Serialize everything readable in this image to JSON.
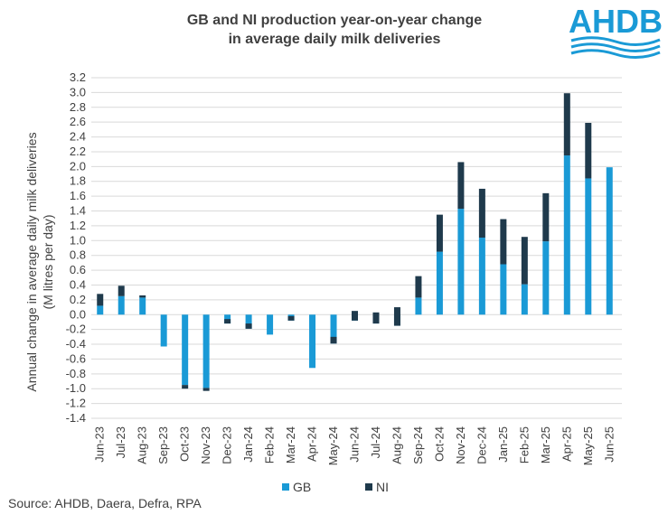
{
  "title_line1": "GB and NI production year-on-year change",
  "title_line2": "in average daily milk deliveries",
  "logo_text": "AHDB",
  "source": "Source: AHDB, Daera, Defra, RPA",
  "colors": {
    "gb": "#1a9ad6",
    "ni": "#1f3a4c",
    "grid": "#d9d9d9",
    "text": "#404040",
    "logo": "#1a9ad6"
  },
  "chart_data": {
    "type": "bar",
    "stacked": true,
    "title": "GB and NI production year-on-year change in average daily milk deliveries",
    "ylabel_line1": "Annual change in average daily milk deliveries",
    "ylabel_line2": "(M litres per day)",
    "xlabel": "",
    "ylim": [
      -1.4,
      3.2
    ],
    "ytick_step": 0.2,
    "yticks": [
      "3.2",
      "3.0",
      "2.8",
      "2.6",
      "2.4",
      "2.2",
      "2.0",
      "1.8",
      "1.6",
      "1.4",
      "1.2",
      "1.0",
      "0.8",
      "0.6",
      "0.4",
      "0.2",
      "0.0",
      "-0.2",
      "-0.4",
      "-0.6",
      "-0.8",
      "-1.0",
      "-1.2",
      "-1.4"
    ],
    "grid": true,
    "legend_position": "bottom",
    "categories": [
      "Jun-23",
      "Jul-23",
      "Aug-23",
      "Sep-23",
      "Oct-23",
      "Nov-23",
      "Dec-23",
      "Jan-24",
      "Feb-24",
      "Mar-24",
      "Apr-24",
      "May-24",
      "Jun-24",
      "Jul-24",
      "Aug-24",
      "Sep-24",
      "Oct-24",
      "Nov-24",
      "Dec-24",
      "Jan-25",
      "Feb-25",
      "Mar-25",
      "Apr-25",
      "May-25",
      "Jun-25"
    ],
    "series": [
      {
        "name": "GB",
        "values": [
          0.12,
          0.25,
          0.23,
          -0.43,
          -0.95,
          -0.99,
          -0.12,
          -0.19,
          -0.27,
          -0.08,
          -0.72,
          -0.39,
          -0.08,
          -0.12,
          -0.15,
          0.23,
          0.85,
          1.43,
          1.04,
          0.68,
          0.41,
          0.99,
          2.15,
          1.84,
          1.99
        ]
      },
      {
        "name": "NI",
        "values": [
          0.16,
          0.14,
          0.03,
          0.0,
          -0.05,
          -0.04,
          0.06,
          0.07,
          0.0,
          0.06,
          0.0,
          0.09,
          0.13,
          0.15,
          0.25,
          0.29,
          0.5,
          0.63,
          0.66,
          0.61,
          0.64,
          0.65,
          0.84,
          0.75,
          0.0
        ]
      }
    ]
  }
}
